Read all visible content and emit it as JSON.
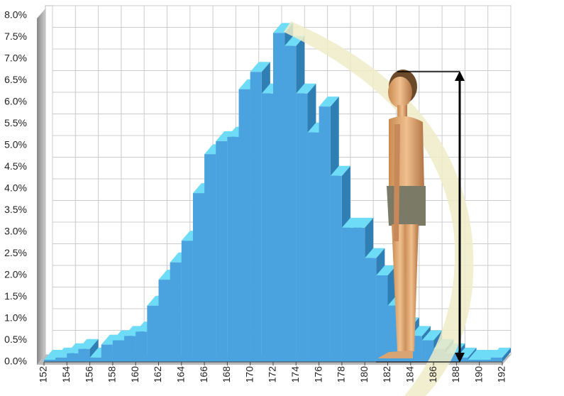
{
  "chart_data": {
    "type": "histogram",
    "bins": [
      152,
      153,
      154,
      155,
      156,
      157,
      158,
      159,
      160,
      161,
      162,
      163,
      164,
      165,
      166,
      167,
      168,
      169,
      170,
      171,
      172,
      173,
      174,
      175,
      176,
      177,
      178,
      179,
      180,
      181,
      182,
      183,
      184,
      185,
      186,
      187,
      188,
      189,
      190,
      191,
      192
    ],
    "values": [
      0.05,
      0.1,
      0.2,
      0.3,
      0.1,
      0.4,
      0.5,
      0.6,
      0.7,
      1.3,
      1.9,
      2.3,
      2.8,
      3.9,
      4.8,
      5.1,
      5.2,
      6.3,
      6.7,
      6.2,
      7.6,
      7.3,
      6.2,
      5.3,
      5.9,
      4.3,
      3.1,
      3.1,
      2.4,
      2.0,
      1.3,
      0.8,
      0.6,
      0.5,
      0.3,
      0.2,
      0.1,
      0.05,
      0.05,
      0.1
    ],
    "color": "#4aa3df",
    "xlim": [
      152,
      192
    ],
    "xticks": [
      152,
      154,
      156,
      158,
      160,
      162,
      164,
      166,
      168,
      170,
      172,
      174,
      176,
      178,
      180,
      182,
      184,
      186,
      188,
      190,
      192
    ],
    "ylim": [
      0,
      8
    ],
    "yticks": [
      {
        "value": 0,
        "label": "0.0%"
      },
      {
        "value": 0.5,
        "label": "0.5%"
      },
      {
        "value": 1,
        "label": "1.0%"
      },
      {
        "value": 1.5,
        "label": "1.5%"
      },
      {
        "value": 2,
        "label": "2.0%"
      },
      {
        "value": 2.5,
        "label": "2.5%"
      },
      {
        "value": 3,
        "label": "3.0%"
      },
      {
        "value": 3.5,
        "label": "3.5%"
      },
      {
        "value": 4,
        "label": "4.0%"
      },
      {
        "value": 4.5,
        "label": "4.5%"
      },
      {
        "value": 5,
        "label": "5.0%"
      },
      {
        "value": 5.5,
        "label": "5.5%"
      },
      {
        "value": 6,
        "label": "6.0%"
      },
      {
        "value": 6.5,
        "label": "6.5%"
      },
      {
        "value": 7,
        "label": "7.0%"
      },
      {
        "value": 7.5,
        "label": "7.5%"
      },
      {
        "value": 8,
        "label": "8.0%"
      }
    ],
    "grid": true
  }
}
